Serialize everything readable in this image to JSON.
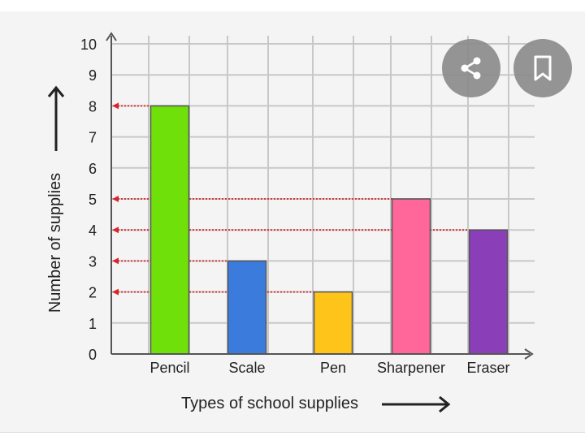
{
  "actions": {
    "share_icon": "share-icon",
    "bookmark_icon": "bookmark-icon"
  },
  "chart_data": {
    "type": "bar",
    "categories": [
      "Pencil",
      "Scale",
      "Pen",
      "Sharpener",
      "Eraser"
    ],
    "values": [
      8,
      3,
      2,
      5,
      4
    ],
    "colors": [
      "#6fe00a",
      "#3a7bdc",
      "#ffc41a",
      "#ff6699",
      "#8a3fb8"
    ],
    "xlabel": "Types of school supplies",
    "ylabel": "Number of supplies",
    "ylim": [
      0,
      10
    ],
    "yticks": [
      "0",
      "1",
      "2",
      "3",
      "4",
      "5",
      "6",
      "7",
      "8",
      "9",
      "10"
    ],
    "grid": true,
    "reference_line_color": "#d9262c"
  }
}
